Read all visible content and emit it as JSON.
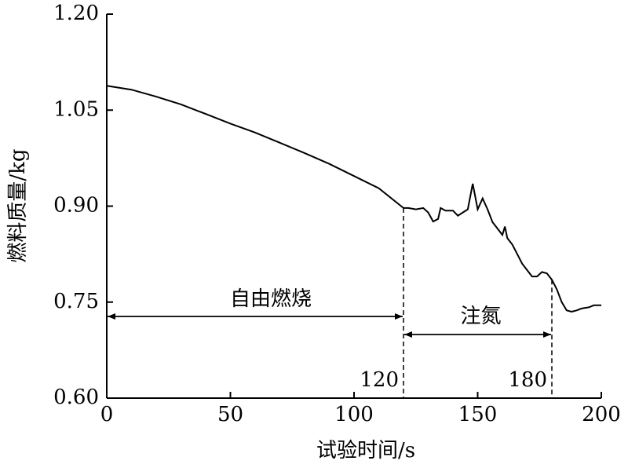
{
  "chart_data": {
    "type": "line",
    "xlabel": "试验时间/s",
    "ylabel": "燃料质量/kg",
    "x": [
      0,
      10,
      20,
      30,
      40,
      50,
      60,
      70,
      80,
      90,
      100,
      110,
      120,
      122,
      125,
      128,
      130,
      132,
      134,
      135,
      137,
      140,
      142,
      144,
      146,
      148,
      149,
      150,
      152,
      154,
      156,
      158,
      160,
      161,
      162,
      164,
      166,
      168,
      170,
      172,
      174,
      176,
      178,
      180,
      182,
      184,
      186,
      188,
      190,
      192,
      195,
      197,
      200
    ],
    "values": [
      1.088,
      1.082,
      1.071,
      1.059,
      1.044,
      1.029,
      1.015,
      0.999,
      0.983,
      0.966,
      0.947,
      0.928,
      0.897,
      0.897,
      0.895,
      0.897,
      0.89,
      0.876,
      0.88,
      0.897,
      0.893,
      0.893,
      0.885,
      0.89,
      0.895,
      0.935,
      0.915,
      0.895,
      0.912,
      0.895,
      0.875,
      0.865,
      0.855,
      0.868,
      0.85,
      0.84,
      0.825,
      0.81,
      0.8,
      0.79,
      0.79,
      0.797,
      0.795,
      0.785,
      0.77,
      0.75,
      0.737,
      0.735,
      0.737,
      0.74,
      0.742,
      0.745,
      0.745
    ],
    "color": "#000000",
    "xlim": [
      0,
      200
    ],
    "xticks": [
      0,
      50,
      100,
      150,
      200
    ],
    "ylim": [
      0.6,
      1.2
    ],
    "yticks": [
      {
        "value": 0.6,
        "label": "0.60"
      },
      {
        "value": 0.75,
        "label": "0.75"
      },
      {
        "value": 0.9,
        "label": "0.90"
      },
      1.05,
      {
        "value": 1.2,
        "label": "1.20"
      }
    ],
    "regions": [
      {
        "label": "自由燃烧",
        "x": [
          0,
          120
        ]
      },
      {
        "label": "注氮",
        "x": [
          120,
          180
        ]
      }
    ],
    "markers": [
      120,
      180
    ]
  }
}
